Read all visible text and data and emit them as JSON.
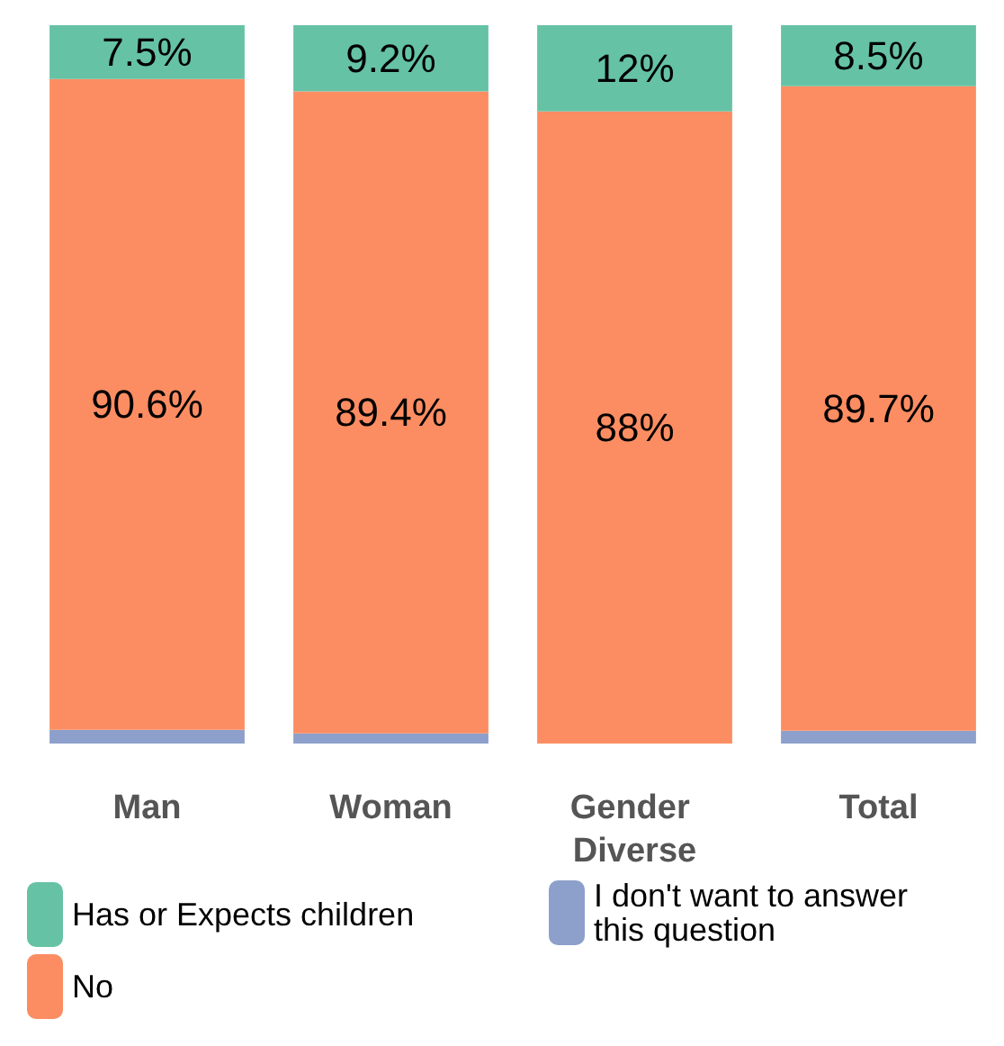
{
  "chart_data": {
    "type": "bar",
    "stacked": true,
    "categories": [
      "Man",
      "Woman",
      "Gender Diverse",
      "Total"
    ],
    "series": [
      {
        "name": "I don't want to answer this question",
        "color": "#8da0cb",
        "values": [
          1.9,
          1.4,
          0,
          1.8
        ],
        "value_labels": [
          null,
          null,
          null,
          null
        ]
      },
      {
        "name": "No",
        "color": "#fc8d62",
        "values": [
          90.6,
          89.4,
          88,
          89.7
        ],
        "value_labels": [
          "90.6%",
          "89.4%",
          "88%",
          "89.7%"
        ]
      },
      {
        "name": "Has or Expects children",
        "color": "#66c2a5",
        "values": [
          7.5,
          9.2,
          12,
          8.5
        ],
        "value_labels": [
          "7.5%",
          "9.2%",
          "12%",
          "8.5%"
        ]
      }
    ],
    "ylim": [
      0,
      100
    ],
    "tick_labels": "x",
    "legend": "bottom"
  }
}
